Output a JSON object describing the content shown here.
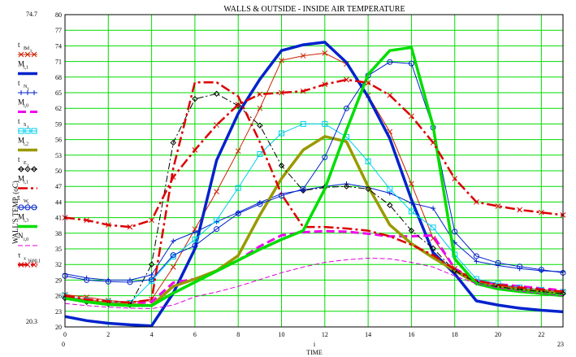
{
  "chart_data": {
    "type": "line",
    "title": "WALLS & OUTSIDE - INSIDE AIR TEMPERATURE",
    "xlabel": "TIME",
    "xlabel_index": "i",
    "ylabel": "WALL'S TEMP. (oC)",
    "xlim": [
      0,
      23
    ],
    "ylim": [
      20,
      80
    ],
    "xlim_labels": [
      "0",
      "23"
    ],
    "ylim_labels": [
      "20.3",
      "74.7"
    ],
    "xticks": [
      0,
      2,
      4,
      6,
      8,
      10,
      12,
      14,
      16,
      18,
      20,
      22
    ],
    "yticks": [
      20,
      23,
      26,
      29,
      32,
      35,
      38,
      41,
      44,
      47,
      50,
      53,
      56,
      59,
      62,
      65,
      68,
      71,
      74,
      77,
      80
    ],
    "grid": true,
    "legend_position": "left",
    "x": [
      0,
      1,
      2,
      3,
      4,
      5,
      6,
      7,
      8,
      9,
      10,
      11,
      12,
      13,
      14,
      15,
      16,
      17,
      18,
      19,
      20,
      21,
      22,
      23
    ],
    "legend": [
      {
        "main": "t",
        "sub": "Bd",
        "subsub": "i",
        "series": 0
      },
      {
        "main": "M",
        "sub": "i,1",
        "series": 1
      },
      {
        "main": "t",
        "sub": "N",
        "subsub": "i",
        "series": 2
      },
      {
        "main": "M",
        "sub": "i,0",
        "series": 3
      },
      {
        "main": "t",
        "sub": "S",
        "subsub": "i",
        "series": 4
      },
      {
        "main": "M",
        "sub": "i,2",
        "series": 5
      },
      {
        "main": "t",
        "sub": "E",
        "subsub": "i",
        "series": 6
      },
      {
        "main": "M",
        "sub": "i,1",
        "series": 7
      },
      {
        "main": "t",
        "sub": "W",
        "subsub": "i",
        "series": 8
      },
      {
        "main": "M",
        "sub": "i,3",
        "series": 9
      },
      {
        "main": "N",
        "sub": "i,0",
        "series": 10
      },
      {
        "main": "τ",
        "sub": "x",
        "subsub": "3600,1",
        "series": 11
      }
    ],
    "series": [
      {
        "color": "#cc2200",
        "style": "thin",
        "marker": "x",
        "values": [
          26.2,
          25.7,
          25.1,
          24.7,
          25.3,
          31.5,
          38.8,
          46,
          53.8,
          62,
          71.2,
          72.1,
          72.6,
          70.5,
          64.5,
          57.5,
          47.5,
          37,
          31.2,
          28.8,
          28,
          27.5,
          27.2,
          26.8
        ]
      },
      {
        "color": "#0022cc",
        "style": "thick",
        "marker": "none",
        "values": [
          22,
          21.2,
          20.7,
          20.4,
          20.2,
          26.5,
          35,
          52,
          61,
          67.6,
          73.1,
          74.2,
          74.7,
          70.8,
          64.2,
          56.2,
          44.5,
          34.3,
          30.2,
          25,
          24.2,
          23.6,
          23.2,
          22.9
        ]
      },
      {
        "color": "#0022cc",
        "style": "thin",
        "marker": "+",
        "values": [
          30.2,
          29.4,
          29,
          29,
          30,
          36.5,
          38.2,
          40.2,
          42,
          43.9,
          45.6,
          46.3,
          47,
          47.5,
          46.8,
          45.7,
          43.8,
          42.8,
          36.2,
          32.6,
          31.8,
          31.2,
          30.8,
          30.6
        ]
      },
      {
        "color": "#ee00ee",
        "style": "dashed-thick",
        "marker": "none",
        "values": [
          25.8,
          25.1,
          24.7,
          24.5,
          24.8,
          28.5,
          29.2,
          30.8,
          32.8,
          35.5,
          37.6,
          38.2,
          38.4,
          38.3,
          37.9,
          37.4,
          37.4,
          37.6,
          31.2,
          29,
          28.2,
          27.8,
          27.4,
          27
        ]
      },
      {
        "color": "#00ccee",
        "style": "thin",
        "marker": "square",
        "values": [
          26,
          25.1,
          24.8,
          24.6,
          28.8,
          33.5,
          36.8,
          40.5,
          46.7,
          53.2,
          57.2,
          59,
          59,
          56.5,
          51.8,
          46.5,
          42.2,
          39.1,
          33.9,
          29.2,
          28.3,
          27.6,
          27.1,
          26.7
        ]
      },
      {
        "color": "#999900",
        "style": "thick",
        "marker": "none",
        "values": [
          25.5,
          25,
          24.5,
          24.3,
          24.1,
          27.8,
          29.2,
          30.8,
          33.7,
          41.5,
          48.5,
          54,
          56.6,
          55.6,
          47,
          39.6,
          36,
          33.3,
          30.8,
          28.4,
          27.6,
          27.2,
          26.8,
          26.5
        ]
      },
      {
        "color": "#000000",
        "style": "dashdot-thin",
        "marker": "diamond",
        "values": [
          25.5,
          24.8,
          24.4,
          24.2,
          32,
          55.4,
          63.8,
          64.8,
          62.5,
          58.7,
          51,
          46.2,
          46.8,
          47,
          46.5,
          43.4,
          38.5,
          35.1,
          30.8,
          28.5,
          27.7,
          27.2,
          26.8,
          26.4
        ]
      },
      {
        "color": "#dd0000",
        "style": "dashdot-thick",
        "marker": "none",
        "values": [
          26,
          25.3,
          24.9,
          24.7,
          25.2,
          50.5,
          67,
          67,
          64.3,
          55.5,
          45.5,
          39.2,
          39.2,
          38.9,
          38.5,
          37.4,
          35.8,
          33.8,
          31.1,
          28.9,
          28.1,
          27.6,
          27.2,
          26.8
        ]
      },
      {
        "color": "#0022cc",
        "style": "thin",
        "marker": "circle",
        "values": [
          29.8,
          29,
          28.7,
          28.6,
          29.1,
          33.8,
          35.6,
          38.8,
          41.8,
          43.6,
          45.2,
          46.5,
          52.6,
          62,
          68.3,
          70.9,
          70.6,
          58.3,
          38.3,
          33.6,
          32.3,
          31.6,
          31,
          30.4
        ]
      },
      {
        "color": "#00dd00",
        "style": "thick",
        "marker": "none",
        "values": [
          25.5,
          24.8,
          24.3,
          24.1,
          24.1,
          26.5,
          28.6,
          30.7,
          32.8,
          34.9,
          36.8,
          38.5,
          46.5,
          57.8,
          68.5,
          73.1,
          73.7,
          58.6,
          33.1,
          28.3,
          27.3,
          26.8,
          26.4,
          26
        ]
      },
      {
        "color": "#dd00dd",
        "style": "dashed-thin",
        "marker": "none",
        "values": [
          24.5,
          24.1,
          23.8,
          23.6,
          23.5,
          24.2,
          25.8,
          26.7,
          27.8,
          29.1,
          30.4,
          31.5,
          32.4,
          32.9,
          33.2,
          33.1,
          32.4,
          31.5,
          29.8,
          28.3,
          27.5,
          26.9,
          26.4,
          26
        ]
      },
      {
        "color": "#dd0000",
        "style": "dashdot-thick",
        "marker": "x",
        "values": [
          41,
          40.5,
          39.6,
          39.2,
          40.5,
          48.8,
          54,
          58.8,
          62.7,
          64.7,
          65,
          65.3,
          66.6,
          67.5,
          66.9,
          64.5,
          60.5,
          55.4,
          48.5,
          44,
          43.2,
          42.5,
          42,
          41.5
        ]
      }
    ]
  }
}
